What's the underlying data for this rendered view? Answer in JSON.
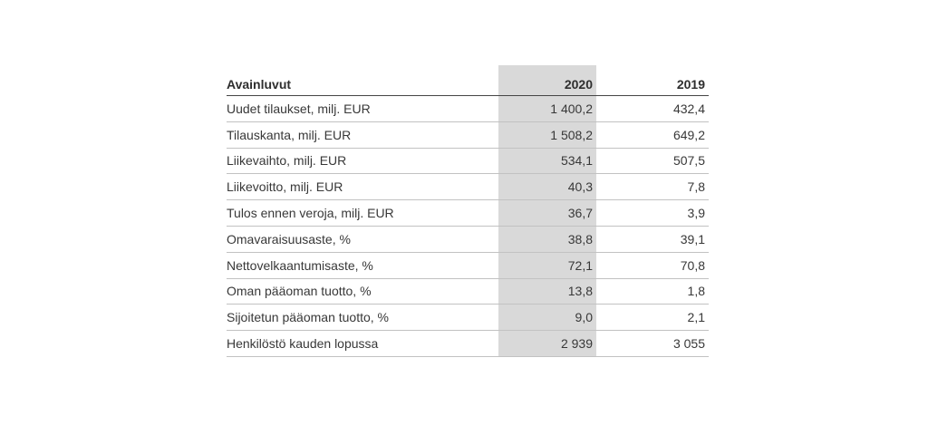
{
  "page": {
    "background_color": "#ffffff",
    "text_color": "#383838",
    "highlight_color": "#d9d9d9"
  },
  "table": {
    "header": {
      "label": "Avainluvut",
      "col_2020": "2020",
      "col_2019": "2019"
    },
    "rows": [
      {
        "label": "Uudet tilaukset, milj. EUR",
        "v2020": "1 400,2",
        "v2019": "432,4"
      },
      {
        "label": "Tilauskanta, milj. EUR",
        "v2020": "1 508,2",
        "v2019": "649,2"
      },
      {
        "label": "Liikevaihto, milj. EUR",
        "v2020": "534,1",
        "v2019": "507,5"
      },
      {
        "label": "Liikevoitto, milj. EUR",
        "v2020": "40,3",
        "v2019": "7,8"
      },
      {
        "label": "Tulos ennen veroja, milj. EUR",
        "v2020": "36,7",
        "v2019": "3,9"
      },
      {
        "label": "Omavaraisuusaste, %",
        "v2020": "38,8",
        "v2019": "39,1"
      },
      {
        "label": "Nettovelkaantumisaste, %",
        "v2020": "72,1",
        "v2019": "70,8"
      },
      {
        "label": "Oman pääoman tuotto, %",
        "v2020": "13,8",
        "v2019": "1,8"
      },
      {
        "label": "Sijoitetun pääoman tuotto, %",
        "v2020": "9,0",
        "v2019": "2,1"
      },
      {
        "label": "Henkilöstö kauden lopussa",
        "v2020": "2 939",
        "v2019": "3 055"
      }
    ]
  }
}
